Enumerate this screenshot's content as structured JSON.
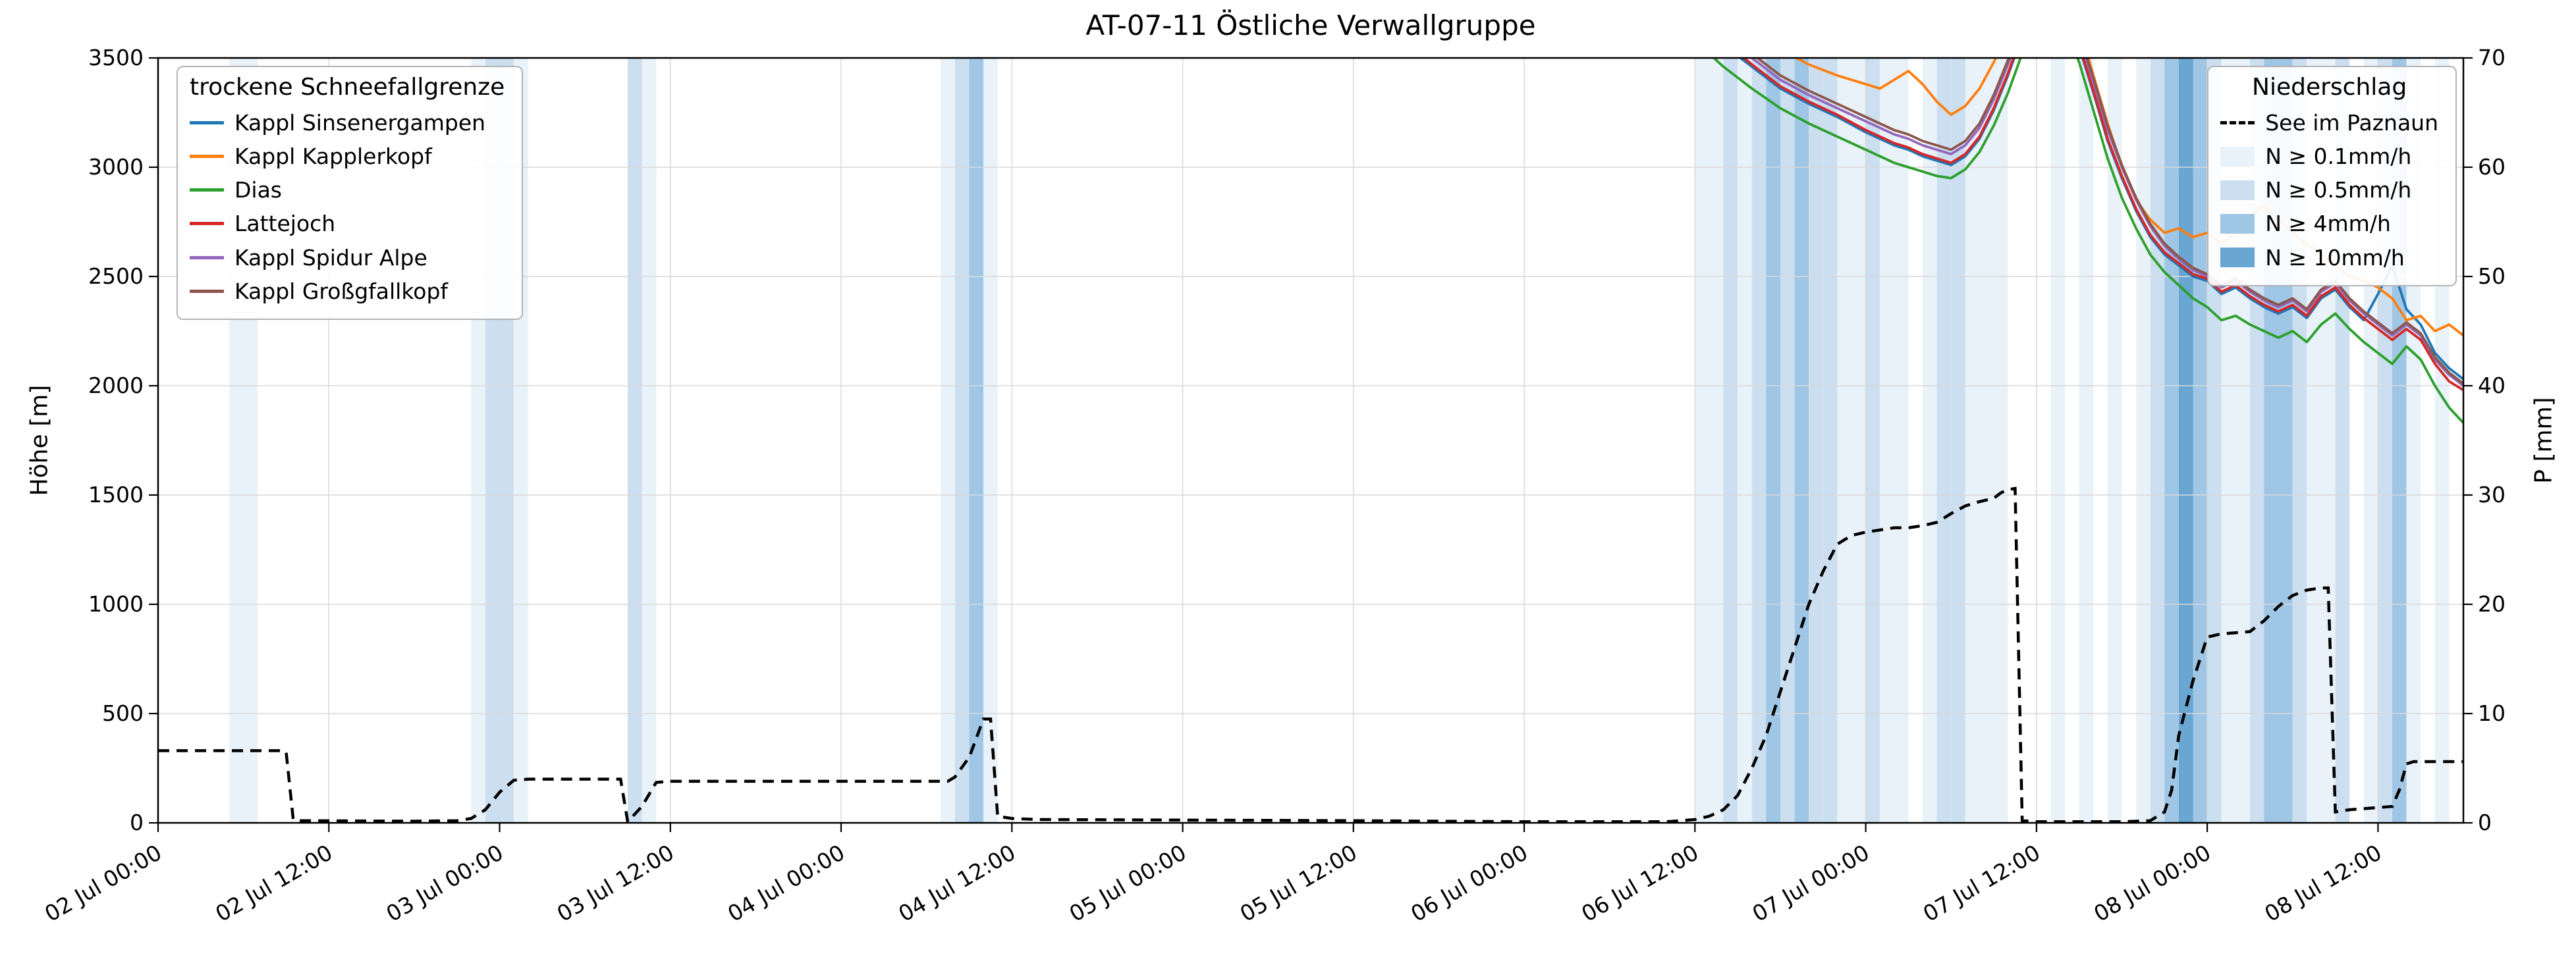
{
  "title": "AT-07-11 Östliche Verwallgruppe",
  "ylabel_left": "Höhe [m]",
  "ylabel_right": "P [mm]",
  "legend_lines": {
    "title": "trockene Schneefallgrenze",
    "items": [
      {
        "label": "Kappl Sinsenergampen",
        "color": "#1f77b4"
      },
      {
        "label": "Kappl Kapplerkopf",
        "color": "#ff7f0e"
      },
      {
        "label": "Dias",
        "color": "#2ca02c"
      },
      {
        "label": "Lattejoch",
        "color": "#d62728"
      },
      {
        "label": "Kappl Spidur Alpe",
        "color": "#9467bd"
      },
      {
        "label": "Kappl Großgfallkopf",
        "color": "#8c564b"
      }
    ]
  },
  "legend_precip": {
    "title": "Niederschlag",
    "line_label": "See im Paznaun",
    "levels": [
      {
        "label": "N ≥ 0.1mm/h"
      },
      {
        "label": "N ≥ 0.5mm/h"
      },
      {
        "label": "N ≥ 4mm/h"
      },
      {
        "label": "N ≥ 10mm/h"
      }
    ]
  },
  "chart_data": {
    "type": "line",
    "title": "AT-07-11 Östliche Verwallgruppe",
    "x_unit": "hours since 02 Jul 00:00",
    "xlim": [
      0,
      162
    ],
    "ylim_left": [
      0,
      3500
    ],
    "ylim_right": [
      0,
      70
    ],
    "grid": true,
    "y_ticks_left": [
      0,
      500,
      1000,
      1500,
      2000,
      2500,
      3000,
      3500
    ],
    "y_ticks_right": [
      0,
      10,
      20,
      30,
      40,
      50,
      60,
      70
    ],
    "x_ticks": [
      {
        "t": 0,
        "label": "02 Jul 00:00"
      },
      {
        "t": 12,
        "label": "02 Jul 12:00"
      },
      {
        "t": 24,
        "label": "03 Jul 00:00"
      },
      {
        "t": 36,
        "label": "03 Jul 12:00"
      },
      {
        "t": 48,
        "label": "04 Jul 00:00"
      },
      {
        "t": 60,
        "label": "04 Jul 12:00"
      },
      {
        "t": 72,
        "label": "05 Jul 00:00"
      },
      {
        "t": 84,
        "label": "05 Jul 12:00"
      },
      {
        "t": 96,
        "label": "06 Jul 00:00"
      },
      {
        "t": 108,
        "label": "06 Jul 12:00"
      },
      {
        "t": 120,
        "label": "07 Jul 00:00"
      },
      {
        "t": 132,
        "label": "07 Jul 12:00"
      },
      {
        "t": 144,
        "label": "08 Jul 00:00"
      },
      {
        "t": 156,
        "label": "08 Jul 12:00"
      }
    ],
    "band_colors": [
      "#e9f1f9",
      "#cbdff1",
      "#9fc6e5",
      "#6aa6d2"
    ],
    "precip_bands": [
      [
        5,
        7,
        1
      ],
      [
        22,
        23,
        1
      ],
      [
        23,
        25,
        2
      ],
      [
        25,
        26,
        1
      ],
      [
        33,
        34,
        2
      ],
      [
        34,
        35,
        1
      ],
      [
        55,
        56,
        1
      ],
      [
        56,
        57,
        2
      ],
      [
        57,
        58,
        3
      ],
      [
        58,
        59,
        1
      ],
      [
        108,
        110,
        1
      ],
      [
        110,
        111,
        2
      ],
      [
        111,
        112,
        1
      ],
      [
        112,
        113,
        2
      ],
      [
        113,
        114,
        3
      ],
      [
        114,
        115,
        2
      ],
      [
        115,
        116,
        3
      ],
      [
        116,
        117,
        2
      ],
      [
        117,
        118,
        2
      ],
      [
        118,
        119,
        1
      ],
      [
        119,
        120,
        1
      ],
      [
        120,
        121,
        2
      ],
      [
        121,
        122,
        1
      ],
      [
        122,
        123,
        1
      ],
      [
        124,
        125,
        1
      ],
      [
        125,
        126,
        2
      ],
      [
        126,
        127,
        2
      ],
      [
        127,
        128,
        1
      ],
      [
        128,
        129,
        1
      ],
      [
        129,
        130,
        1
      ],
      [
        133,
        134,
        1
      ],
      [
        135,
        136,
        1
      ],
      [
        137,
        138,
        1
      ],
      [
        139,
        140,
        1
      ],
      [
        140,
        141,
        2
      ],
      [
        141,
        142,
        3
      ],
      [
        142,
        143,
        4
      ],
      [
        143,
        144,
        3
      ],
      [
        144,
        145,
        2
      ],
      [
        145,
        146,
        1
      ],
      [
        146,
        147,
        1
      ],
      [
        147,
        148,
        2
      ],
      [
        148,
        149,
        3
      ],
      [
        149,
        150,
        3
      ],
      [
        150,
        151,
        2
      ],
      [
        151,
        152,
        1
      ],
      [
        152,
        153,
        1
      ],
      [
        153,
        154,
        2
      ],
      [
        155,
        156,
        1
      ],
      [
        156,
        157,
        2
      ],
      [
        157,
        158,
        3
      ],
      [
        158,
        159,
        1
      ],
      [
        160,
        161,
        1
      ]
    ],
    "series_x": [
      106,
      108,
      110,
      112,
      114,
      116,
      118,
      120,
      121,
      122,
      123,
      124,
      125,
      126,
      127,
      128,
      129,
      130,
      131,
      132,
      133,
      134,
      135,
      136,
      137,
      138,
      139,
      140,
      141,
      142,
      143,
      144,
      145,
      146,
      147,
      148,
      149,
      150,
      151,
      152,
      153,
      154,
      155,
      156,
      157,
      158,
      159,
      160,
      161,
      162
    ],
    "series": [
      {
        "name": "Kappl Sinsenergampen",
        "color": "#1f77b4",
        "y": [
          3800,
          3680,
          3560,
          3460,
          3360,
          3290,
          3230,
          3160,
          3130,
          3100,
          3080,
          3050,
          3030,
          3010,
          3050,
          3130,
          3260,
          3420,
          3600,
          3720,
          3780,
          3700,
          3550,
          3340,
          3120,
          2950,
          2800,
          2680,
          2600,
          2550,
          2500,
          2480,
          2420,
          2450,
          2400,
          2360,
          2330,
          2360,
          2310,
          2400,
          2440,
          2360,
          2300,
          2420,
          2550,
          2350,
          2280,
          2150,
          2080,
          2030
        ]
      },
      {
        "name": "Kappl Kapplerkopf",
        "color": "#ff7f0e",
        "y": [
          3900,
          3800,
          3700,
          3620,
          3540,
          3470,
          3420,
          3380,
          3360,
          3400,
          3440,
          3380,
          3300,
          3240,
          3280,
          3360,
          3480,
          3620,
          3750,
          3850,
          3900,
          3820,
          3650,
          3420,
          3200,
          3000,
          2850,
          2760,
          2700,
          2720,
          2680,
          2700,
          2650,
          2700,
          2780,
          2820,
          2760,
          2700,
          2650,
          2600,
          2550,
          2500,
          2480,
          2450,
          2400,
          2300,
          2320,
          2250,
          2280,
          2230
        ]
      },
      {
        "name": "Dias",
        "color": "#2ca02c",
        "y": [
          3700,
          3580,
          3460,
          3360,
          3270,
          3200,
          3140,
          3080,
          3050,
          3020,
          3000,
          2980,
          2960,
          2950,
          2990,
          3070,
          3190,
          3340,
          3520,
          3650,
          3720,
          3640,
          3480,
          3260,
          3040,
          2860,
          2720,
          2600,
          2520,
          2460,
          2400,
          2360,
          2300,
          2320,
          2280,
          2250,
          2220,
          2250,
          2200,
          2280,
          2330,
          2260,
          2200,
          2150,
          2100,
          2180,
          2120,
          2000,
          1900,
          1830
        ]
      },
      {
        "name": "Lattejoch",
        "color": "#d62728",
        "y": [
          3820,
          3700,
          3580,
          3470,
          3370,
          3300,
          3240,
          3170,
          3140,
          3110,
          3090,
          3060,
          3040,
          3020,
          3060,
          3140,
          3270,
          3430,
          3610,
          3730,
          3790,
          3710,
          3560,
          3350,
          3130,
          2960,
          2810,
          2690,
          2610,
          2560,
          2510,
          2490,
          2430,
          2460,
          2410,
          2370,
          2340,
          2370,
          2320,
          2410,
          2450,
          2370,
          2310,
          2260,
          2210,
          2260,
          2210,
          2100,
          2020,
          1980
        ]
      },
      {
        "name": "Kappl Spidur Alpe",
        "color": "#9467bd",
        "y": [
          3840,
          3720,
          3600,
          3500,
          3400,
          3330,
          3270,
          3210,
          3180,
          3150,
          3130,
          3100,
          3080,
          3060,
          3100,
          3180,
          3310,
          3470,
          3640,
          3760,
          3820,
          3740,
          3590,
          3390,
          3170,
          3000,
          2850,
          2730,
          2640,
          2580,
          2530,
          2500,
          2450,
          2480,
          2430,
          2390,
          2360,
          2390,
          2340,
          2430,
          2470,
          2390,
          2330,
          2280,
          2230,
          2280,
          2230,
          2120,
          2050,
          2000
        ]
      },
      {
        "name": "Kappl Großgfallkopf",
        "color": "#8c564b",
        "y": [
          3860,
          3740,
          3620,
          3520,
          3420,
          3350,
          3290,
          3230,
          3200,
          3170,
          3150,
          3120,
          3100,
          3080,
          3120,
          3200,
          3330,
          3490,
          3660,
          3780,
          3840,
          3760,
          3610,
          3410,
          3190,
          3010,
          2860,
          2740,
          2650,
          2590,
          2540,
          2510,
          2460,
          2490,
          2440,
          2400,
          2370,
          2400,
          2350,
          2440,
          2480,
          2400,
          2340,
          2290,
          2240,
          2290,
          2240,
          2130,
          2060,
          2010
        ]
      }
    ],
    "precip_line": {
      "name": "See im Paznaun",
      "color": "#000000",
      "style": "dashed",
      "axis": "right",
      "points": [
        [
          0,
          6.6
        ],
        [
          8.5,
          6.6
        ],
        [
          9,
          6.5
        ],
        [
          9.5,
          0.3
        ],
        [
          10,
          0.2
        ],
        [
          18,
          0.15
        ],
        [
          21,
          0.2
        ],
        [
          22,
          0.4
        ],
        [
          23,
          1.2
        ],
        [
          24,
          2.8
        ],
        [
          25,
          3.9
        ],
        [
          26,
          4.0
        ],
        [
          32.5,
          4.0
        ],
        [
          33,
          0.1
        ],
        [
          34,
          1.5
        ],
        [
          35,
          3.7
        ],
        [
          36,
          3.8
        ],
        [
          55.5,
          3.8
        ],
        [
          56,
          4.2
        ],
        [
          57,
          6.0
        ],
        [
          58,
          9.5
        ],
        [
          58.5,
          9.5
        ],
        [
          59,
          0.6
        ],
        [
          60,
          0.4
        ],
        [
          62,
          0.3
        ],
        [
          72,
          0.25
        ],
        [
          84,
          0.2
        ],
        [
          90,
          0.15
        ],
        [
          96,
          0.1
        ],
        [
          106,
          0.1
        ],
        [
          108,
          0.3
        ],
        [
          109,
          0.6
        ],
        [
          110,
          1.2
        ],
        [
          111,
          2.5
        ],
        [
          112,
          5
        ],
        [
          113,
          8
        ],
        [
          114,
          12
        ],
        [
          115,
          16
        ],
        [
          116,
          20
        ],
        [
          117,
          23
        ],
        [
          118,
          25.5
        ],
        [
          119,
          26.3
        ],
        [
          120,
          26.6
        ],
        [
          121,
          26.8
        ],
        [
          122,
          27
        ],
        [
          123,
          27
        ],
        [
          124,
          27.2
        ],
        [
          125,
          27.5
        ],
        [
          126,
          28.3
        ],
        [
          127,
          29
        ],
        [
          128,
          29.4
        ],
        [
          129,
          29.7
        ],
        [
          129.5,
          30.2
        ],
        [
          130,
          30.5
        ],
        [
          130.5,
          30.6
        ],
        [
          131,
          0.2
        ],
        [
          132,
          0.1
        ],
        [
          138,
          0.1
        ],
        [
          140,
          0.2
        ],
        [
          141,
          1
        ],
        [
          141.5,
          3
        ],
        [
          142,
          8
        ],
        [
          143,
          13
        ],
        [
          144,
          17
        ],
        [
          145,
          17.3
        ],
        [
          146,
          17.4
        ],
        [
          147,
          17.5
        ],
        [
          148,
          18.5
        ],
        [
          149,
          19.8
        ],
        [
          150,
          20.8
        ],
        [
          151,
          21.3
        ],
        [
          152,
          21.5
        ],
        [
          152.5,
          21.5
        ],
        [
          153,
          1
        ],
        [
          154,
          1.2
        ],
        [
          156,
          1.4
        ],
        [
          157,
          1.5
        ],
        [
          157.5,
          3
        ],
        [
          158,
          5.4
        ],
        [
          158.5,
          5.6
        ],
        [
          162,
          5.6
        ]
      ]
    }
  }
}
